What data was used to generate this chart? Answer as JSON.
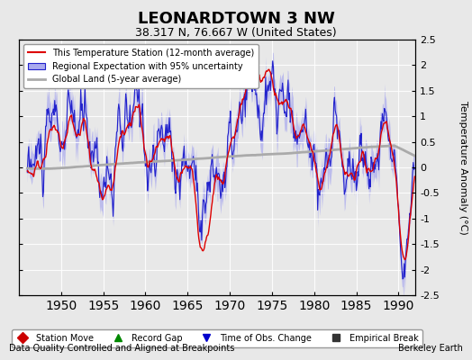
{
  "title": "LEONARDTOWN 3 NW",
  "subtitle": "38.317 N, 76.667 W (United States)",
  "ylabel": "Temperature Anomaly (°C)",
  "xlabel_note": "Data Quality Controlled and Aligned at Breakpoints",
  "credit": "Berkeley Earth",
  "ylim": [
    -2.5,
    2.5
  ],
  "xlim": [
    1945,
    1992
  ],
  "xticks": [
    1950,
    1955,
    1960,
    1965,
    1970,
    1975,
    1980,
    1985,
    1990
  ],
  "yticks": [
    -2.5,
    -2,
    -1.5,
    -1,
    -0.5,
    0,
    0.5,
    1,
    1.5,
    2,
    2.5
  ],
  "bg_color": "#e8e8e8",
  "plot_bg_color": "#e8e8e8",
  "station_color": "#dd0000",
  "regional_color": "#2222cc",
  "regional_fill_color": "#aaaaee",
  "global_color": "#aaaaaa",
  "legend_labels": [
    "This Temperature Station (12-month average)",
    "Regional Expectation with 95% uncertainty",
    "Global Land (5-year average)"
  ],
  "marker_legend": [
    {
      "label": "Station Move",
      "color": "#cc0000",
      "marker": "D"
    },
    {
      "label": "Record Gap",
      "color": "#008800",
      "marker": "^"
    },
    {
      "label": "Time of Obs. Change",
      "color": "#0000cc",
      "marker": "v"
    },
    {
      "label": "Empirical Break",
      "color": "#333333",
      "marker": "s"
    }
  ]
}
